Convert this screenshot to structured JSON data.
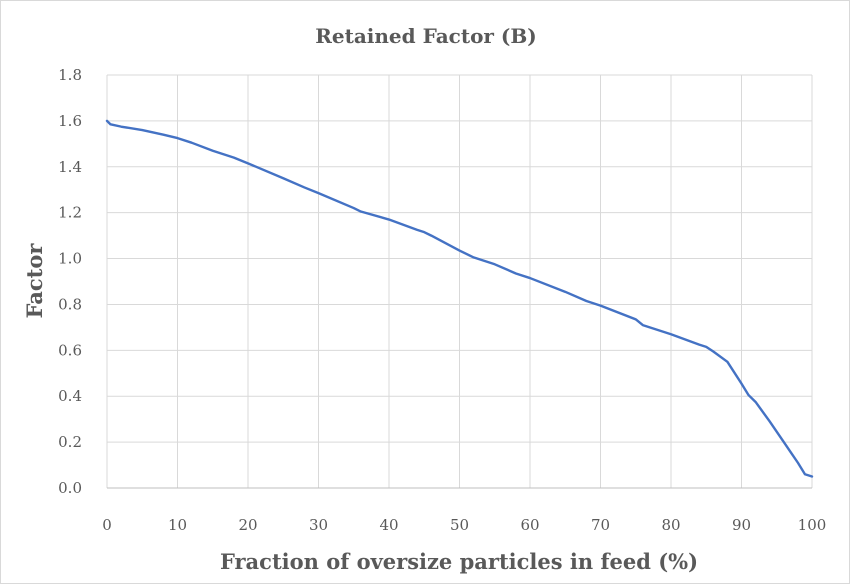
{
  "chart_data": {
    "type": "line",
    "title": "Retained Factor (B)",
    "xlabel": "Fraction of oversize particles in feed (%)",
    "ylabel": "Factor",
    "xlim": [
      0,
      100
    ],
    "ylim": [
      0,
      1.8
    ],
    "x_ticks": [
      "0",
      "10",
      "20",
      "30",
      "40",
      "50",
      "60",
      "70",
      "80",
      "90",
      "100"
    ],
    "y_ticks": [
      "0.0",
      "0.2",
      "0.4",
      "0.6",
      "0.8",
      "1.0",
      "1.2",
      "1.4",
      "1.6",
      "1.8"
    ],
    "grid": true,
    "series": [
      {
        "name": "Retained Factor (B)",
        "color": "#4472c4",
        "x": [
          0,
          0.5,
          2,
          5,
          8,
          10,
          12,
          15,
          18,
          20,
          25,
          28,
          30,
          35,
          36,
          40,
          44,
          45,
          46,
          50,
          52,
          55,
          58,
          60,
          65,
          68,
          70,
          75,
          76,
          80,
          84,
          85,
          86,
          88,
          90,
          91,
          92,
          94,
          96,
          97,
          98,
          99,
          100
        ],
        "y": [
          1.6,
          1.585,
          1.575,
          1.56,
          1.54,
          1.525,
          1.505,
          1.47,
          1.44,
          1.415,
          1.35,
          1.31,
          1.285,
          1.22,
          1.205,
          1.17,
          1.125,
          1.115,
          1.1,
          1.035,
          1.005,
          0.975,
          0.935,
          0.915,
          0.855,
          0.815,
          0.795,
          0.735,
          0.71,
          0.67,
          0.625,
          0.615,
          0.595,
          0.55,
          0.455,
          0.405,
          0.375,
          0.29,
          0.2,
          0.155,
          0.11,
          0.06,
          0.05
        ]
      }
    ]
  }
}
